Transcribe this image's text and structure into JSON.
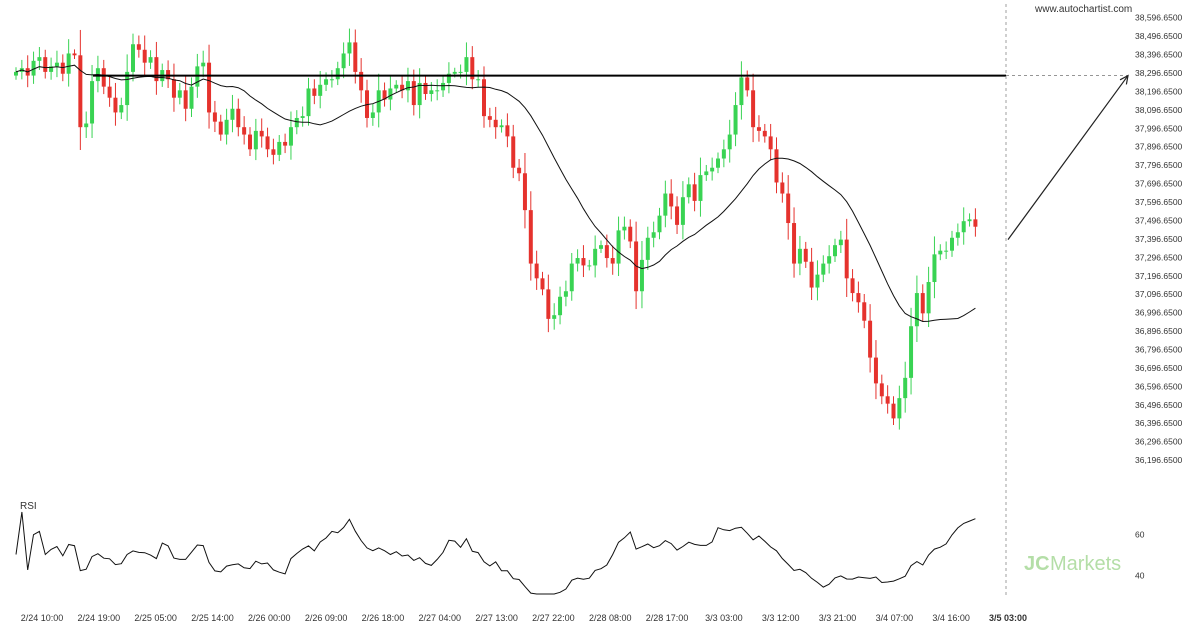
{
  "watermark": "www.autochartist.com",
  "rsi_label": "RSI",
  "brand": {
    "logo_mark": "JC",
    "logo_text": "Markets",
    "color": "#8fcf7a"
  },
  "colors": {
    "bull": "#39d353",
    "bear": "#e5322d",
    "ma": "#111111",
    "level": "#000000",
    "axis_text": "#333333",
    "grid_dash": "#888888"
  },
  "chart_data": [
    {
      "type": "candlestick",
      "title": "",
      "ylabel": "",
      "ylim": [
        36096.65,
        38646.65
      ],
      "y_tick_labels": [
        "38,596.6500",
        "38,496.6500",
        "38,396.6500",
        "38,296.6500",
        "38,196.6500",
        "38,096.6500",
        "37,996.6500",
        "37,896.6500",
        "37,796.6500",
        "37,696.6500",
        "37,596.6500",
        "37,496.6500",
        "37,396.6500",
        "37,296.6500",
        "37,196.6500",
        "37,096.6500",
        "36,996.6500",
        "36,896.6500",
        "36,796.6500",
        "36,696.6500",
        "36,596.6500",
        "36,496.6500",
        "36,396.6500",
        "36,296.6500",
        "36,196.6500"
      ],
      "x_tick_labels": [
        "2/24 10:00",
        "2/24 19:00",
        "2/25 05:00",
        "2/25 14:00",
        "2/26 00:00",
        "2/26 09:00",
        "2/26 18:00",
        "2/27 04:00",
        "2/27 13:00",
        "2/27 22:00",
        "2/28 08:00",
        "2/28 17:00",
        "3/3 03:00",
        "3/3 12:00",
        "3/3 21:00",
        "3/4 07:00",
        "3/4 16:00",
        "3/5 03:00"
      ],
      "highlight_x_label": "3/5 03:00",
      "resistance_level": 38280,
      "projection": {
        "from": 37390,
        "to": 38280
      },
      "close": [
        38300,
        38320,
        38280,
        38360,
        38380,
        38300,
        38330,
        38350,
        38290,
        38400,
        38390,
        38000,
        38020,
        38250,
        38320,
        38220,
        38160,
        38080,
        38120,
        38300,
        38450,
        38420,
        38350,
        38380,
        38250,
        38310,
        38260,
        38160,
        38200,
        38100,
        38220,
        38330,
        38350,
        38080,
        38030,
        37960,
        38040,
        38100,
        38000,
        37960,
        37880,
        37980,
        37950,
        37880,
        37850,
        37920,
        37900,
        38000,
        38050,
        38060,
        38210,
        38170,
        38230,
        38260,
        38260,
        38320,
        38400,
        38460,
        38300,
        38200,
        38050,
        38080,
        38200,
        38150,
        38210,
        38230,
        38200,
        38250,
        38120,
        38240,
        38180,
        38200,
        38200,
        38240,
        38290,
        38300,
        38300,
        38380,
        38260,
        38260,
        38060,
        38040,
        38000,
        38010,
        37950,
        37780,
        37750,
        37550,
        37260,
        37180,
        37120,
        36960,
        36980,
        37080,
        37110,
        37260,
        37290,
        37250,
        37250,
        37340,
        37360,
        37290,
        37260,
        37440,
        37460,
        37380,
        37110,
        37280,
        37400,
        37430,
        37520,
        37640,
        37570,
        37470,
        37620,
        37690,
        37600,
        37740,
        37760,
        37780,
        37830,
        37880,
        37960,
        38120,
        38270,
        38200,
        38000,
        37980,
        37950,
        37880,
        37700,
        37640,
        37480,
        37260,
        37340,
        37270,
        37130,
        37200,
        37260,
        37300,
        37360,
        37390,
        37180,
        37100,
        37050,
        36950,
        36750,
        36610,
        36540,
        36500,
        36420,
        36530,
        36640,
        36920,
        37100,
        36990,
        37160,
        37310,
        37330,
        37330,
        37400,
        37430,
        37490,
        37500,
        37460
      ],
      "moving_average_shown": true,
      "rsi_ticks": [
        60,
        40
      ]
    }
  ]
}
